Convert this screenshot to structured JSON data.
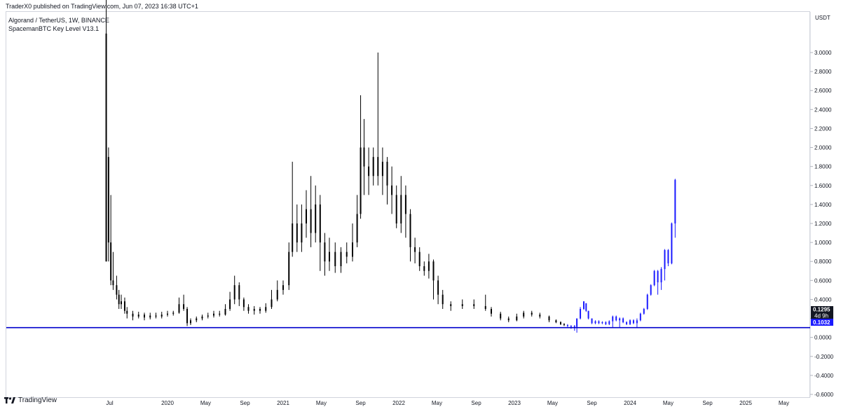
{
  "header": {
    "published": "TraderX0 published on TradingView.com, Jun 07, 2023 16:38 UTC+1"
  },
  "legend": {
    "line1": "Algorand / TetherUS, 1W, BINANCE",
    "line2": "SpacemanBTC Key Level V13.1"
  },
  "footer": {
    "brand": "TradingView"
  },
  "colors": {
    "candle": "#000000",
    "projection": "#1a1aff",
    "keyline": "#0000cc",
    "grid": "#e0e3eb"
  },
  "chart_data": {
    "type": "candlestick",
    "title": "Algorand / TetherUS, 1W, BINANCE",
    "yunit": "USDT",
    "ylim": [
      -0.6,
      3.6
    ],
    "yticks": [
      "3.0000",
      "2.8000",
      "2.6000",
      "2.4000",
      "2.2000",
      "2.0000",
      "1.8000",
      "1.6000",
      "1.4000",
      "1.2000",
      "1.0000",
      "0.8000",
      "0.6000",
      "0.4000",
      "0.2000",
      "0.0000",
      "-0.2000",
      "-0.4000",
      "-0.6000"
    ],
    "xticks": [
      {
        "label": "Jul",
        "t": 2019.5
      },
      {
        "label": "2020",
        "t": 2020.0
      },
      {
        "label": "May",
        "t": 2020.33
      },
      {
        "label": "Sep",
        "t": 2020.67
      },
      {
        "label": "2021",
        "t": 2021.0
      },
      {
        "label": "May",
        "t": 2021.33
      },
      {
        "label": "Sep",
        "t": 2021.67
      },
      {
        "label": "2022",
        "t": 2022.0
      },
      {
        "label": "May",
        "t": 2022.33
      },
      {
        "label": "Sep",
        "t": 2022.67
      },
      {
        "label": "2023",
        "t": 2023.0
      },
      {
        "label": "May",
        "t": 2023.33
      },
      {
        "label": "Sep",
        "t": 2023.67
      },
      {
        "label": "2024",
        "t": 2024.0
      },
      {
        "label": "May",
        "t": 2024.33
      },
      {
        "label": "Sep",
        "t": 2024.67
      },
      {
        "label": "2025",
        "t": 2025.0
      },
      {
        "label": "May",
        "t": 2025.33
      }
    ],
    "key_level": 0.1032,
    "last_price": {
      "value": "0.1295",
      "countdown": "4d 9h"
    },
    "key_label": "0.1032",
    "history": [
      [
        2019.47,
        3.2,
        0.8,
        3.6,
        0.8
      ],
      [
        2019.49,
        1.9,
        1.0,
        2.0,
        0.8
      ],
      [
        2019.51,
        1.0,
        0.6,
        1.5,
        0.55
      ],
      [
        2019.53,
        0.6,
        0.55,
        0.9,
        0.5
      ],
      [
        2019.56,
        0.55,
        0.45,
        0.65,
        0.4
      ],
      [
        2019.58,
        0.45,
        0.35,
        0.5,
        0.3
      ],
      [
        2019.6,
        0.35,
        0.38,
        0.45,
        0.3
      ],
      [
        2019.63,
        0.38,
        0.28,
        0.42,
        0.25
      ],
      [
        2019.65,
        0.28,
        0.25,
        0.32,
        0.2
      ],
      [
        2019.7,
        0.25,
        0.22,
        0.28,
        0.18
      ],
      [
        2019.75,
        0.22,
        0.24,
        0.27,
        0.2
      ],
      [
        2019.8,
        0.24,
        0.21,
        0.26,
        0.18
      ],
      [
        2019.85,
        0.21,
        0.23,
        0.26,
        0.19
      ],
      [
        2019.9,
        0.23,
        0.22,
        0.26,
        0.2
      ],
      [
        2019.95,
        0.22,
        0.24,
        0.27,
        0.2
      ],
      [
        2020.0,
        0.24,
        0.25,
        0.28,
        0.22
      ],
      [
        2020.05,
        0.25,
        0.26,
        0.28,
        0.23
      ],
      [
        2020.1,
        0.26,
        0.35,
        0.42,
        0.25
      ],
      [
        2020.14,
        0.35,
        0.3,
        0.45,
        0.28
      ],
      [
        2020.17,
        0.3,
        0.15,
        0.32,
        0.12
      ],
      [
        2020.2,
        0.15,
        0.18,
        0.2,
        0.13
      ],
      [
        2020.25,
        0.18,
        0.2,
        0.22,
        0.16
      ],
      [
        2020.3,
        0.2,
        0.22,
        0.24,
        0.18
      ],
      [
        2020.35,
        0.22,
        0.23,
        0.26,
        0.2
      ],
      [
        2020.4,
        0.23,
        0.25,
        0.28,
        0.21
      ],
      [
        2020.45,
        0.25,
        0.24,
        0.28,
        0.22
      ],
      [
        2020.5,
        0.24,
        0.3,
        0.35,
        0.23
      ],
      [
        2020.54,
        0.3,
        0.4,
        0.48,
        0.28
      ],
      [
        2020.58,
        0.4,
        0.55,
        0.65,
        0.35
      ],
      [
        2020.62,
        0.55,
        0.4,
        0.58,
        0.33
      ],
      [
        2020.66,
        0.4,
        0.32,
        0.42,
        0.28
      ],
      [
        2020.7,
        0.32,
        0.28,
        0.35,
        0.25
      ],
      [
        2020.75,
        0.28,
        0.3,
        0.33,
        0.24
      ],
      [
        2020.8,
        0.3,
        0.28,
        0.32,
        0.25
      ],
      [
        2020.85,
        0.28,
        0.32,
        0.36,
        0.26
      ],
      [
        2020.9,
        0.32,
        0.4,
        0.5,
        0.3
      ],
      [
        2020.95,
        0.4,
        0.5,
        0.6,
        0.38
      ],
      [
        2021.0,
        0.5,
        0.55,
        0.6,
        0.45
      ],
      [
        2021.05,
        0.55,
        0.9,
        1.0,
        0.5
      ],
      [
        2021.08,
        0.9,
        1.2,
        1.85,
        0.85
      ],
      [
        2021.12,
        1.2,
        1.0,
        1.4,
        0.9
      ],
      [
        2021.16,
        1.0,
        1.2,
        1.4,
        0.9
      ],
      [
        2021.2,
        1.2,
        1.35,
        1.55,
        1.05
      ],
      [
        2021.24,
        1.35,
        1.1,
        1.7,
        0.95
      ],
      [
        2021.28,
        1.1,
        1.4,
        1.6,
        1.0
      ],
      [
        2021.32,
        1.4,
        1.0,
        1.5,
        0.7
      ],
      [
        2021.36,
        1.0,
        0.8,
        1.1,
        0.65
      ],
      [
        2021.4,
        0.8,
        0.9,
        1.05,
        0.7
      ],
      [
        2021.45,
        0.9,
        0.75,
        1.0,
        0.68
      ],
      [
        2021.5,
        0.75,
        0.9,
        0.95,
        0.68
      ],
      [
        2021.55,
        0.9,
        0.85,
        1.0,
        0.78
      ],
      [
        2021.6,
        0.85,
        1.0,
        1.2,
        0.8
      ],
      [
        2021.64,
        1.0,
        1.3,
        1.5,
        0.95
      ],
      [
        2021.67,
        1.3,
        2.0,
        2.55,
        1.25
      ],
      [
        2021.7,
        2.0,
        1.8,
        2.3,
        1.5
      ],
      [
        2021.74,
        1.8,
        1.7,
        2.0,
        1.5
      ],
      [
        2021.78,
        1.7,
        1.9,
        2.0,
        1.6
      ],
      [
        2021.82,
        1.9,
        1.7,
        3.0,
        1.6
      ],
      [
        2021.86,
        1.7,
        1.85,
        2.0,
        1.5
      ],
      [
        2021.9,
        1.85,
        1.6,
        1.9,
        1.4
      ],
      [
        2021.94,
        1.6,
        1.5,
        1.8,
        1.3
      ],
      [
        2021.98,
        1.5,
        1.2,
        1.6,
        1.15
      ],
      [
        2022.02,
        1.2,
        1.5,
        1.7,
        1.1
      ],
      [
        2022.06,
        1.5,
        1.3,
        1.6,
        1.05
      ],
      [
        2022.1,
        1.3,
        0.95,
        1.35,
        0.8
      ],
      [
        2022.14,
        0.95,
        0.9,
        1.05,
        0.78
      ],
      [
        2022.18,
        0.9,
        0.75,
        0.95,
        0.7
      ],
      [
        2022.22,
        0.75,
        0.7,
        0.8,
        0.65
      ],
      [
        2022.26,
        0.7,
        0.8,
        0.88,
        0.62
      ],
      [
        2022.3,
        0.8,
        0.6,
        0.82,
        0.4
      ],
      [
        2022.34,
        0.6,
        0.45,
        0.65,
        0.35
      ],
      [
        2022.38,
        0.45,
        0.35,
        0.5,
        0.3
      ],
      [
        2022.45,
        0.35,
        0.33,
        0.38,
        0.28
      ],
      [
        2022.55,
        0.33,
        0.35,
        0.4,
        0.3
      ],
      [
        2022.65,
        0.35,
        0.33,
        0.4,
        0.3
      ],
      [
        2022.75,
        0.33,
        0.3,
        0.45,
        0.28
      ],
      [
        2022.8,
        0.3,
        0.25,
        0.32,
        0.22
      ],
      [
        2022.88,
        0.25,
        0.2,
        0.27,
        0.18
      ],
      [
        2022.95,
        0.2,
        0.18,
        0.22,
        0.16
      ],
      [
        2023.02,
        0.18,
        0.22,
        0.25,
        0.17
      ],
      [
        2023.08,
        0.22,
        0.26,
        0.28,
        0.2
      ],
      [
        2023.15,
        0.26,
        0.24,
        0.28,
        0.22
      ],
      [
        2023.22,
        0.24,
        0.22,
        0.26,
        0.2
      ],
      [
        2023.3,
        0.22,
        0.18,
        0.23,
        0.16
      ],
      [
        2023.36,
        0.18,
        0.16,
        0.19,
        0.15
      ],
      [
        2023.4,
        0.16,
        0.14,
        0.17,
        0.13
      ],
      [
        2023.43,
        0.14,
        0.13,
        0.15,
        0.12
      ]
    ],
    "projection": [
      [
        2023.46,
        0.13,
        0.12,
        0.14,
        0.11
      ],
      [
        2023.49,
        0.12,
        0.11,
        0.13,
        0.09
      ],
      [
        2023.52,
        0.11,
        0.12,
        0.13,
        0.07
      ],
      [
        2023.54,
        0.11,
        0.2,
        0.2,
        0.05
      ],
      [
        2023.57,
        0.2,
        0.3,
        0.32,
        0.19
      ],
      [
        2023.6,
        0.3,
        0.38,
        0.38,
        0.29
      ],
      [
        2023.62,
        0.36,
        0.28,
        0.36,
        0.27
      ],
      [
        2023.64,
        0.28,
        0.2,
        0.28,
        0.19
      ],
      [
        2023.67,
        0.2,
        0.15,
        0.2,
        0.14
      ],
      [
        2023.7,
        0.15,
        0.17,
        0.18,
        0.14
      ],
      [
        2023.73,
        0.17,
        0.15,
        0.18,
        0.14
      ],
      [
        2023.76,
        0.15,
        0.16,
        0.17,
        0.14
      ],
      [
        2023.79,
        0.16,
        0.14,
        0.17,
        0.13
      ],
      [
        2023.82,
        0.14,
        0.17,
        0.18,
        0.13
      ],
      [
        2023.85,
        0.17,
        0.22,
        0.23,
        0.1
      ],
      [
        2023.88,
        0.22,
        0.18,
        0.23,
        0.17
      ],
      [
        2023.91,
        0.18,
        0.2,
        0.21,
        0.1
      ],
      [
        2023.94,
        0.2,
        0.16,
        0.21,
        0.15
      ],
      [
        2023.97,
        0.16,
        0.14,
        0.17,
        0.13
      ],
      [
        2024.0,
        0.14,
        0.18,
        0.19,
        0.13
      ],
      [
        2024.03,
        0.18,
        0.15,
        0.19,
        0.14
      ],
      [
        2024.06,
        0.15,
        0.18,
        0.2,
        0.1
      ],
      [
        2024.09,
        0.18,
        0.25,
        0.26,
        0.17
      ],
      [
        2024.12,
        0.25,
        0.3,
        0.31,
        0.24
      ],
      [
        2024.15,
        0.3,
        0.45,
        0.46,
        0.29
      ],
      [
        2024.18,
        0.45,
        0.55,
        0.56,
        0.44
      ],
      [
        2024.21,
        0.55,
        0.7,
        0.71,
        0.54
      ],
      [
        2024.24,
        0.7,
        0.58,
        0.71,
        0.45
      ],
      [
        2024.27,
        0.58,
        0.72,
        0.74,
        0.5
      ],
      [
        2024.3,
        0.72,
        0.92,
        0.93,
        0.6
      ],
      [
        2024.33,
        0.92,
        0.78,
        0.93,
        0.75
      ],
      [
        2024.36,
        0.78,
        1.2,
        1.21,
        0.77
      ],
      [
        2024.39,
        1.2,
        1.66,
        1.67,
        1.05
      ]
    ]
  }
}
